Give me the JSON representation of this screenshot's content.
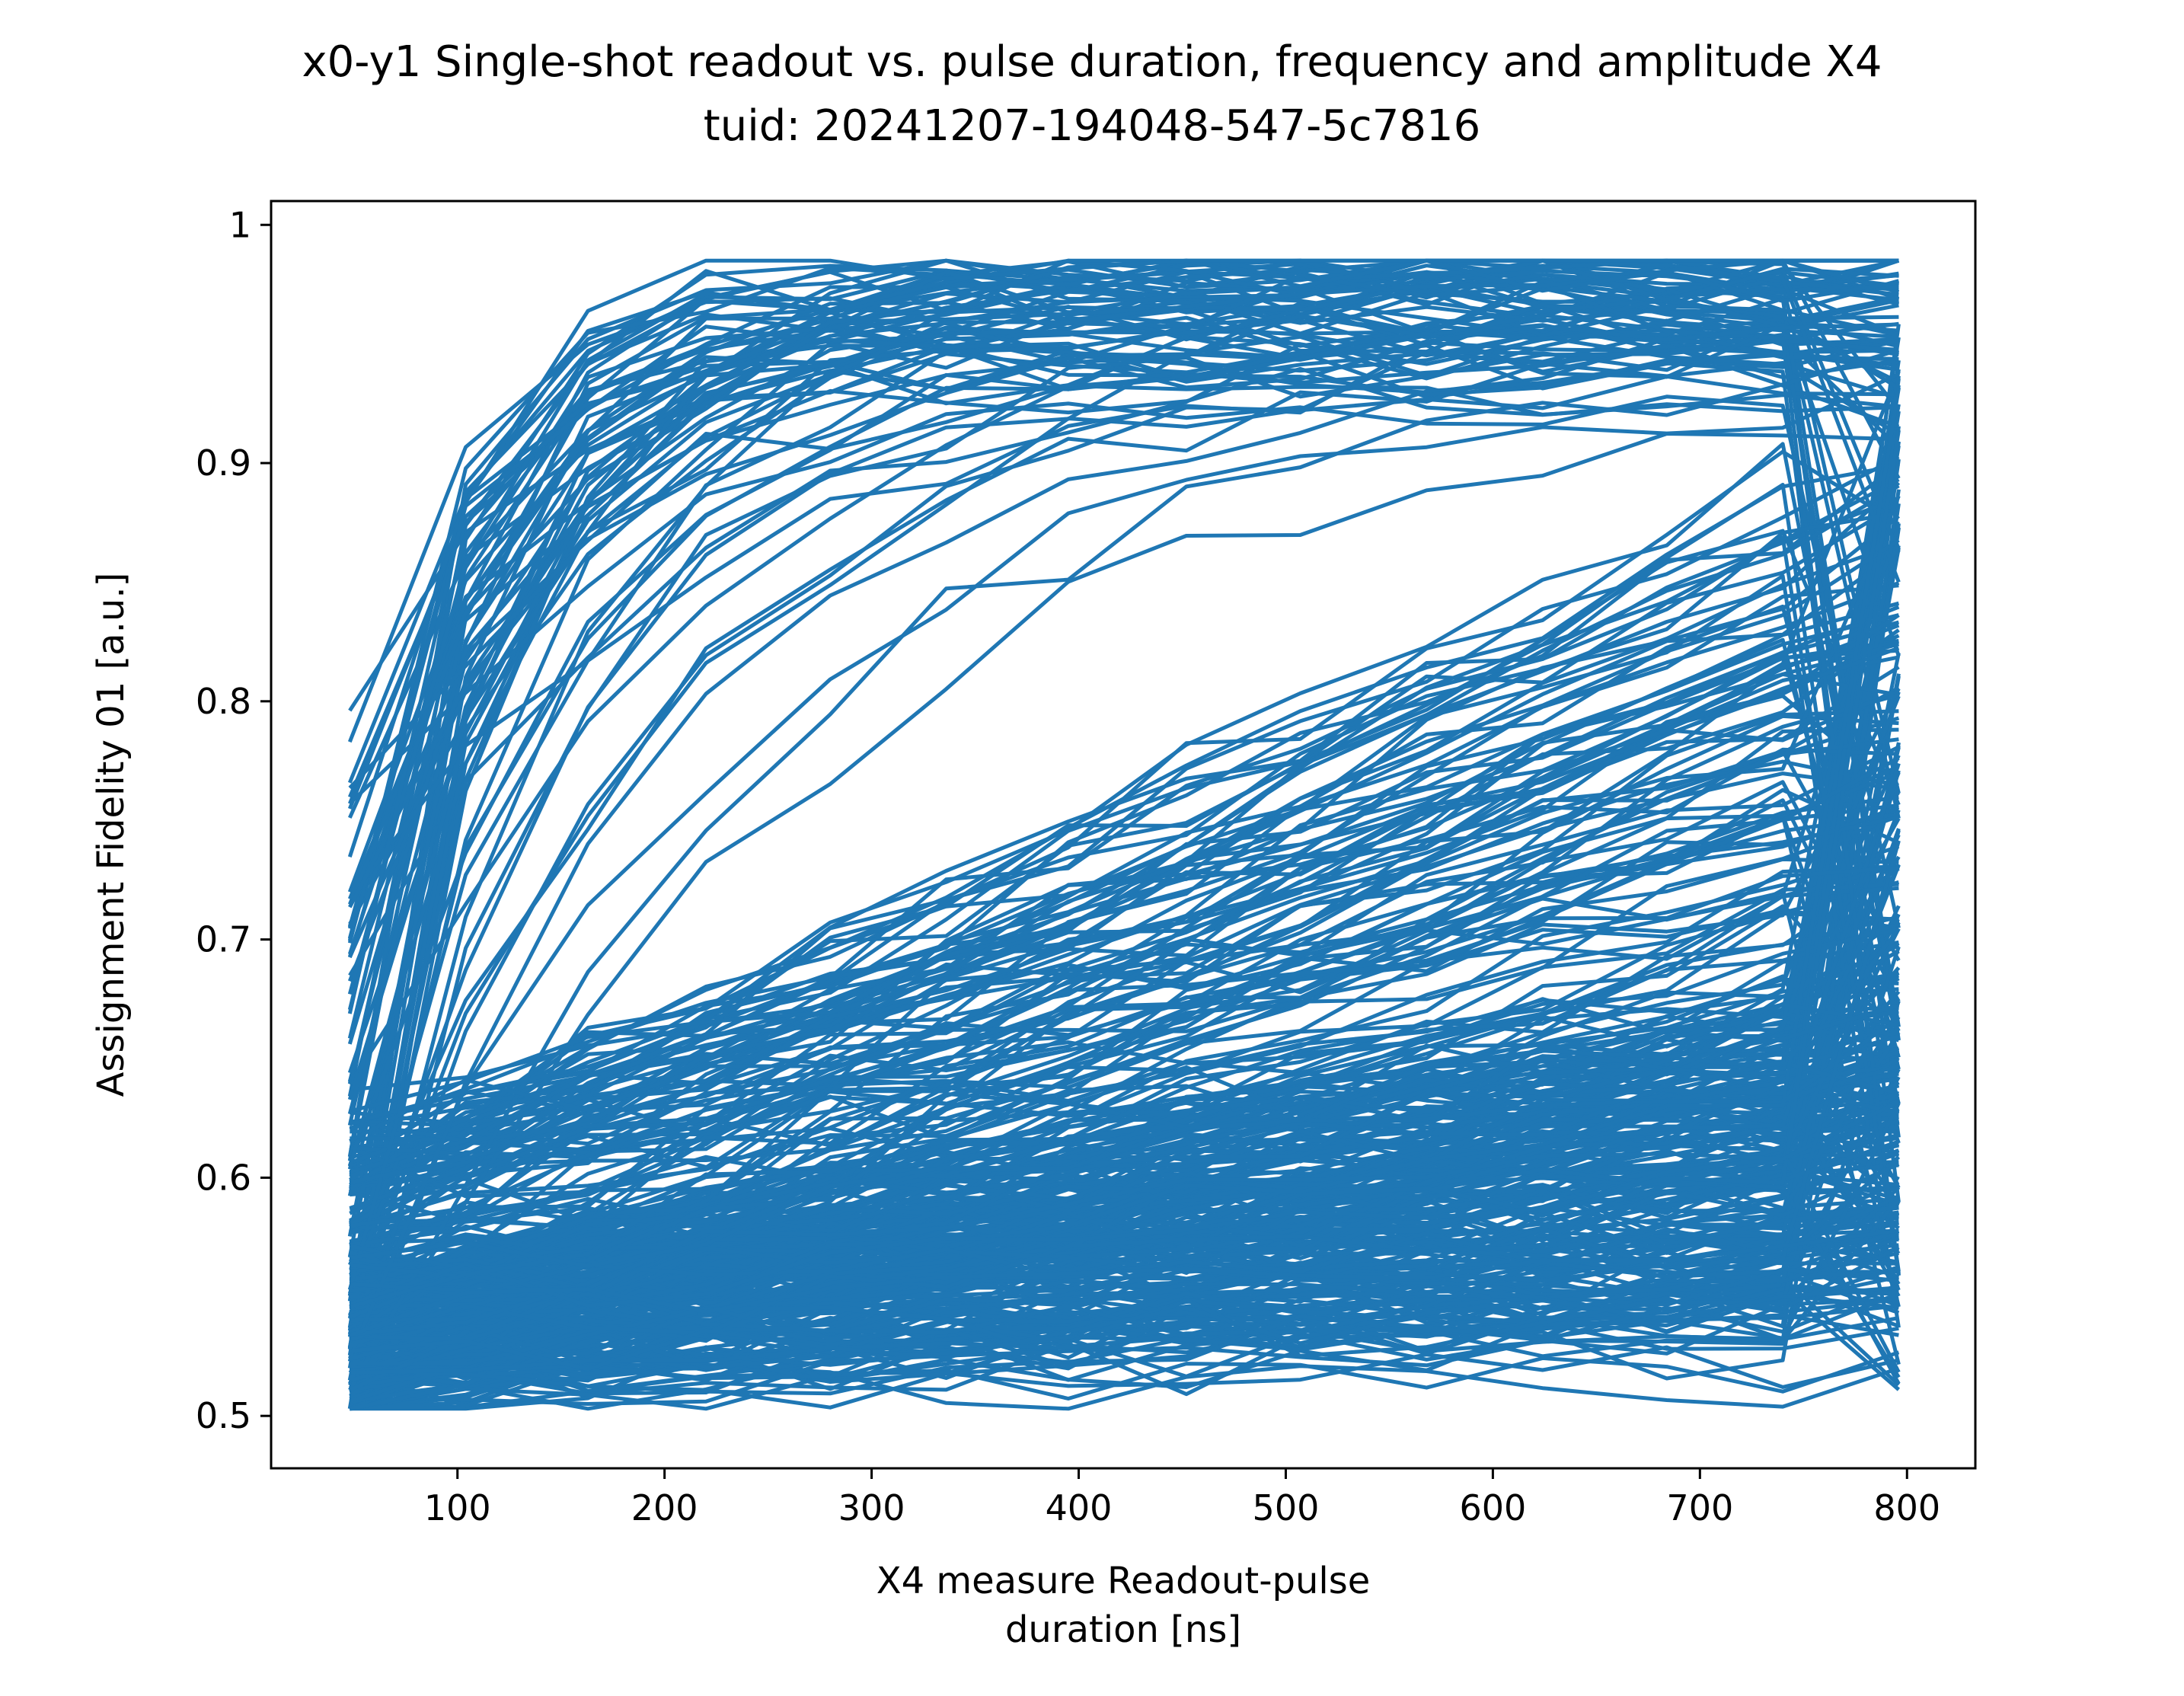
{
  "chart_data": {
    "type": "line",
    "title_line1": "x0-y1 Single-shot readout vs. pulse duration, frequency and amplitude X4",
    "title_line2": "tuid: 20241207-194048-547-5c7816",
    "xlabel_line1": "X4 measure Readout-pulse",
    "xlabel_line2": "duration [ns]",
    "ylabel": "Assignment Fidelity 01 [a.u.]",
    "xlim": [
      10,
      833
    ],
    "ylim": [
      0.478,
      1.01
    ],
    "xticks": [
      100,
      200,
      300,
      400,
      500,
      600,
      700,
      800
    ],
    "yticks": [
      0.5,
      0.6,
      0.7,
      0.8,
      0.9,
      1.0
    ],
    "ytick_labels": [
      "0.5",
      "0.6",
      "0.7",
      "0.8",
      "0.9",
      "1"
    ],
    "x": [
      48,
      104,
      163,
      220,
      280,
      336,
      395,
      452,
      507,
      568,
      624,
      684,
      740,
      796
    ],
    "series_count": 400,
    "color": "#1f77b4",
    "marker": "circle",
    "grid": false,
    "legend": "none"
  }
}
